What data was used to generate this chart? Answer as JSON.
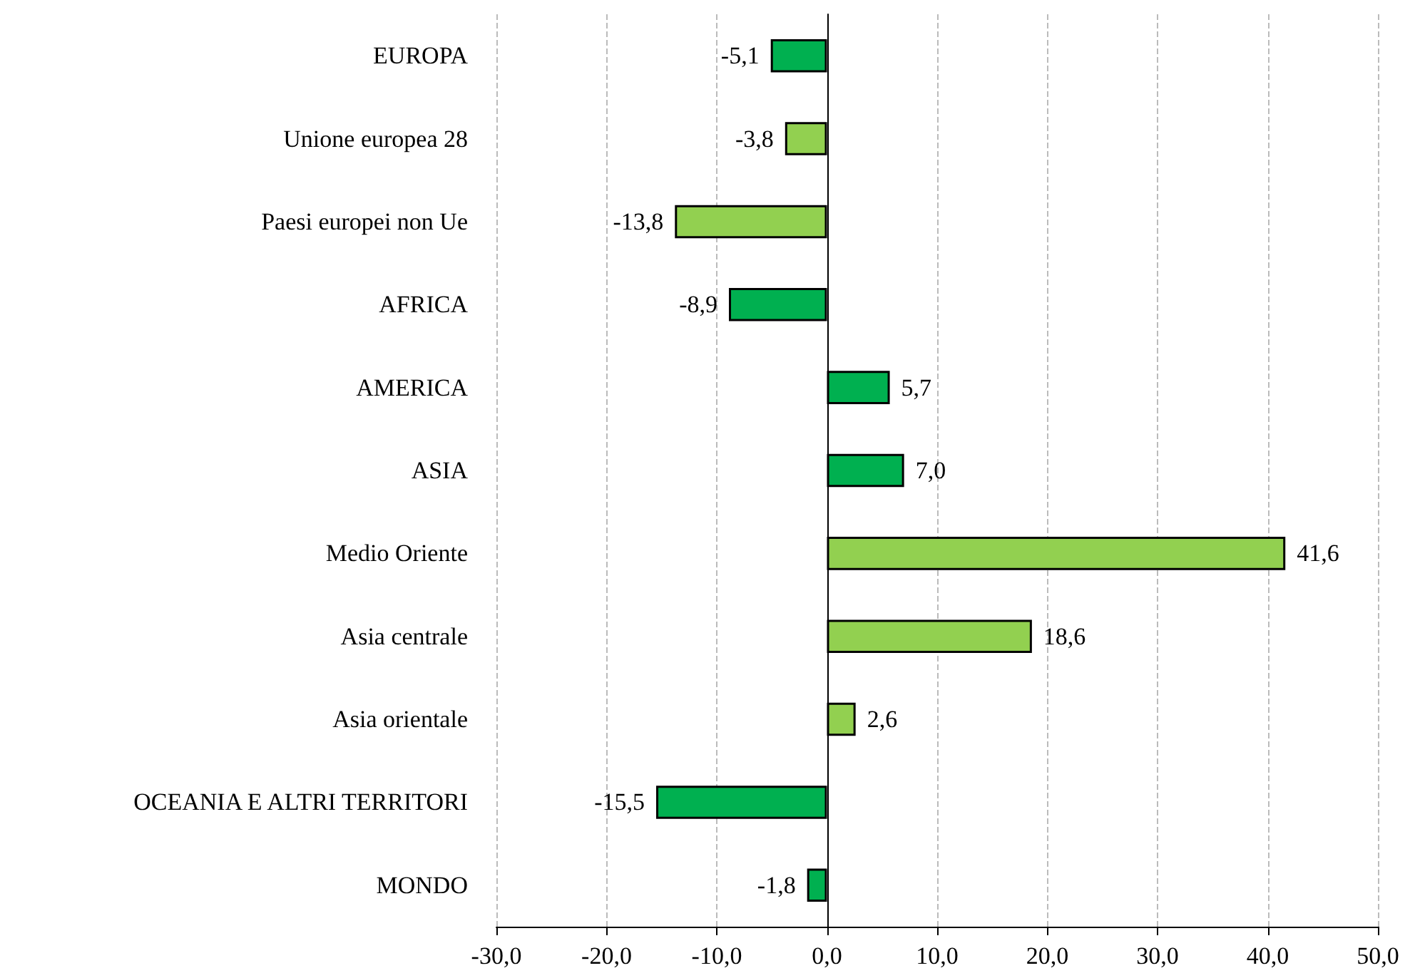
{
  "chart_data": {
    "type": "bar",
    "orientation": "horizontal",
    "categories": [
      "EUROPA",
      "Unione europea 28",
      "Paesi europei non Ue",
      "AFRICA",
      "AMERICA",
      "ASIA",
      "Medio Oriente",
      "Asia centrale",
      "Asia orientale",
      "OCEANIA E ALTRI TERRITORI",
      "MONDO"
    ],
    "values": [
      -5.1,
      -3.8,
      -13.8,
      -8.9,
      5.7,
      7.0,
      41.6,
      18.6,
      2.6,
      -15.5,
      -1.8
    ],
    "colors": [
      "#00b050",
      "#92d050",
      "#92d050",
      "#00b050",
      "#00b050",
      "#00b050",
      "#92d050",
      "#92d050",
      "#92d050",
      "#00b050",
      "#00b050"
    ],
    "value_labels": [
      "-5,1",
      "-3,8",
      "-13,8",
      "-8,9",
      "5,7",
      "7,0",
      "41,6",
      "18,6",
      "2,6",
      "-15,5",
      "-1,8"
    ],
    "xlim": [
      -30,
      50
    ],
    "xticks": [
      {
        "value": -30,
        "label": "-30,0"
      },
      {
        "value": -20,
        "label": "-20,0"
      },
      {
        "value": -10,
        "label": "-10,0"
      },
      {
        "value": 0,
        "label": "0,0"
      },
      {
        "value": 10,
        "label": "10,0"
      },
      {
        "value": 20,
        "label": "20,0"
      },
      {
        "value": 30,
        "label": "30,0"
      },
      {
        "value": 40,
        "label": "40,0"
      },
      {
        "value": 50,
        "label": "50,0"
      }
    ],
    "grid": "x",
    "line_style": "dashed"
  }
}
